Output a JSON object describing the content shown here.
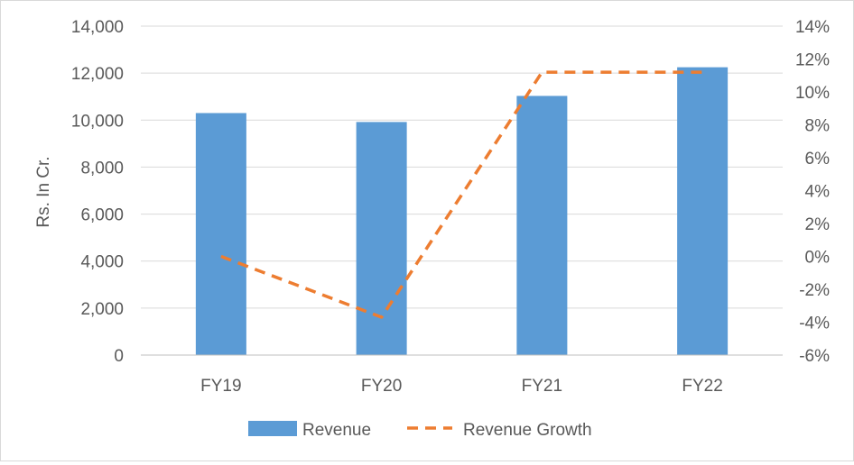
{
  "chart_data": {
    "type": "bar",
    "categories": [
      "FY19",
      "FY20",
      "FY21",
      "FY22"
    ],
    "series": [
      {
        "name": "Revenue",
        "kind": "bar",
        "axis": "left",
        "values": [
          10300,
          9920,
          11030,
          12250
        ],
        "color": "#5b9bd5"
      },
      {
        "name": "Revenue Growth",
        "kind": "line",
        "axis": "right",
        "line_style": "dashed",
        "values_percent": [
          0,
          -3.7,
          11.2,
          11.2
        ],
        "color": "#ed7d31"
      }
    ],
    "title": "",
    "xlabel": "",
    "ylabel": "Rs. In Cr.",
    "ylim": [
      0,
      14000
    ],
    "y_ticks": [
      "0",
      "2,000",
      "4,000",
      "6,000",
      "8,000",
      "10,000",
      "12,000",
      "14,000"
    ],
    "y2lim_percent": [
      -6,
      14
    ],
    "y2_ticks": [
      "-6%",
      "-4%",
      "-2%",
      "0%",
      "2%",
      "4%",
      "6%",
      "8%",
      "10%",
      "12%",
      "14%"
    ],
    "grid": true,
    "legend_position": "bottom"
  }
}
